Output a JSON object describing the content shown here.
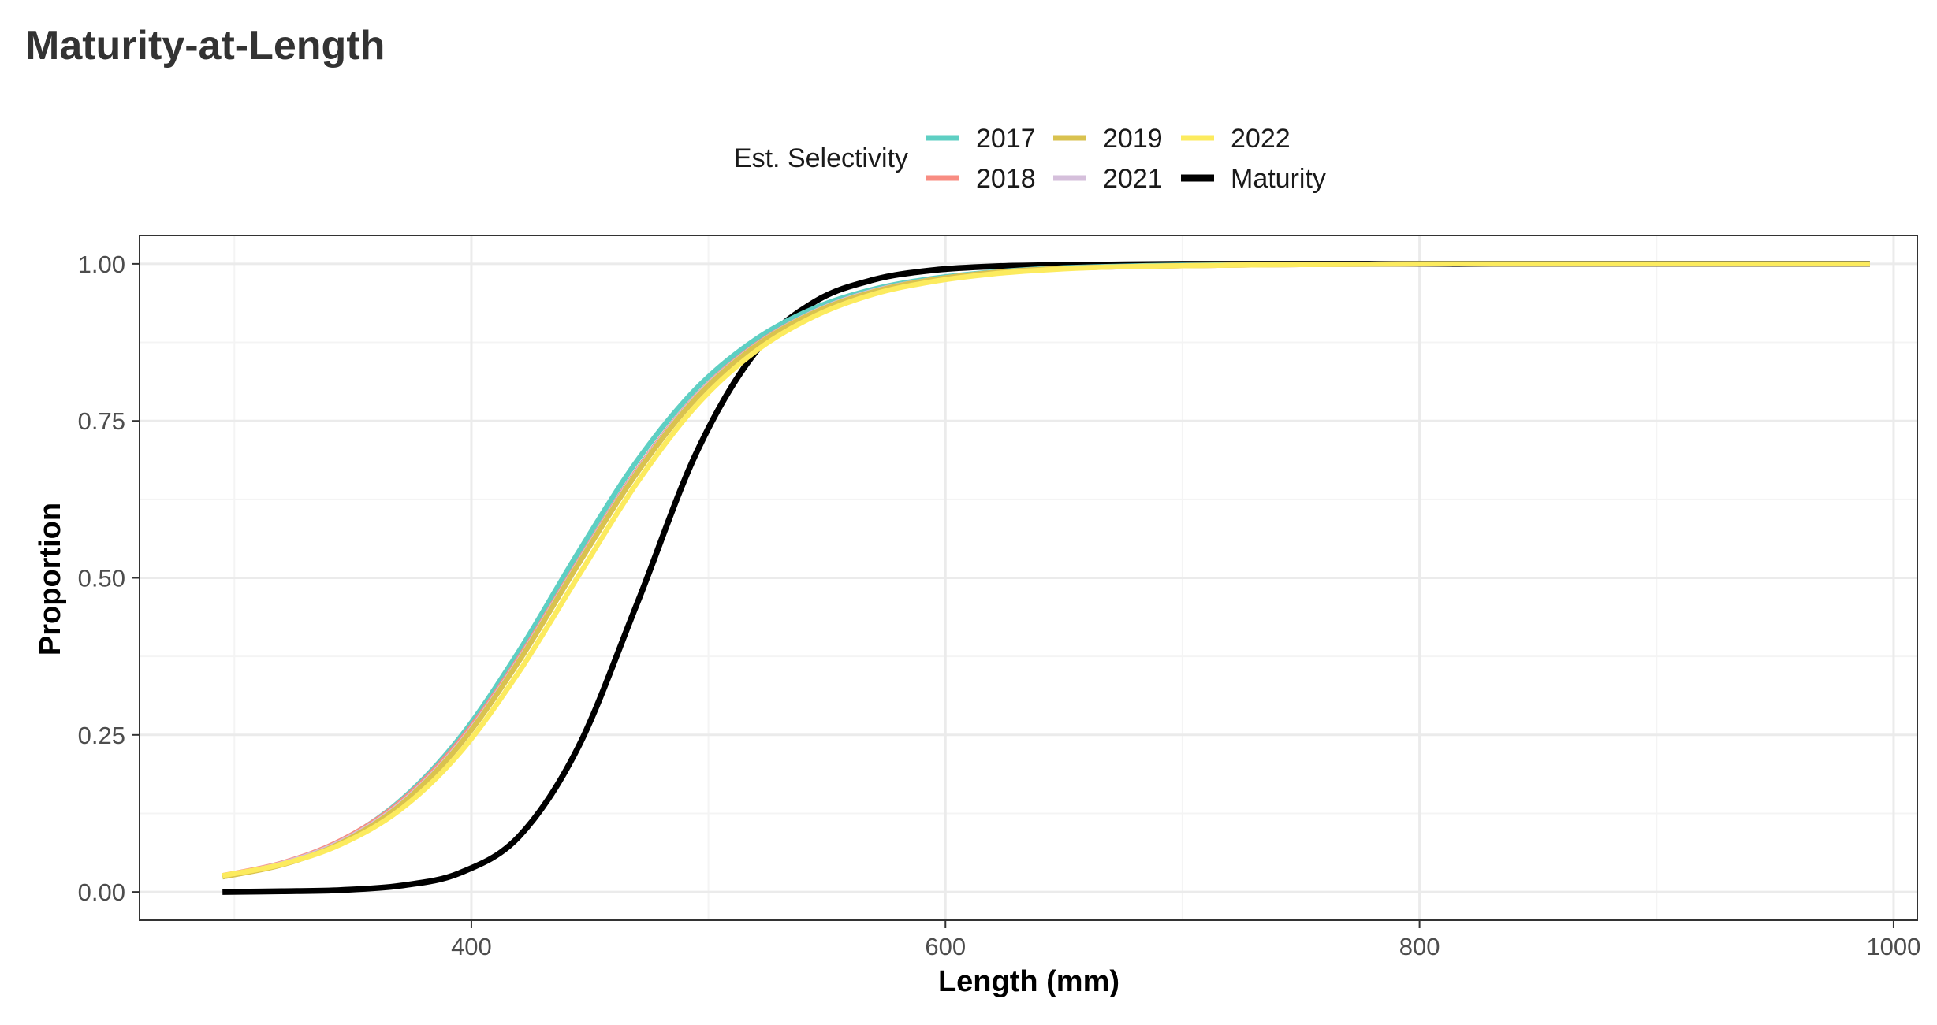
{
  "page": {
    "title": "Maturity-at-Length"
  },
  "colors": {
    "2017": "#5ECFC3",
    "2018": "#F88C82",
    "2019": "#D9C24F",
    "2021": "#D5BFDB",
    "2022": "#FCEB5E",
    "Maturity": "#000000",
    "grid_major": "#EBEBEB",
    "grid_minor": "#F4F4F4",
    "panel_border": "#333333"
  },
  "chart_data": {
    "type": "line",
    "title": "Maturity-at-Length",
    "xlabel": "Length (mm)",
    "ylabel": "Proportion",
    "xlim": [
      260,
      1010
    ],
    "ylim": [
      -0.045,
      1.045
    ],
    "x_ticks": [
      400,
      600,
      800,
      1000
    ],
    "x_tick_labels": [
      "400",
      "600",
      "800",
      "1000"
    ],
    "y_ticks": [
      0,
      0.25,
      0.5,
      0.75,
      1
    ],
    "y_tick_labels": [
      "0.00",
      "0.25",
      "0.50",
      "0.75",
      "1.00"
    ],
    "x_minor": [
      300,
      500,
      700,
      900
    ],
    "y_minor": [
      0.125,
      0.375,
      0.625,
      0.875
    ],
    "grid": true,
    "legend": {
      "title": "Est. Selectivity",
      "position": "top",
      "entries": [
        "2017",
        "2018",
        "2019",
        "2021",
        "2022",
        "Maturity"
      ]
    },
    "x": [
      295,
      320,
      345,
      370,
      395,
      420,
      445,
      470,
      495,
      520,
      545,
      570,
      595,
      620,
      645,
      670,
      700,
      750,
      800,
      850,
      900,
      950,
      990
    ],
    "series": [
      {
        "name": "2017",
        "values": [
          0.024,
          0.044,
          0.081,
          0.145,
          0.245,
          0.383,
          0.54,
          0.687,
          0.802,
          0.88,
          0.93,
          0.96,
          0.977,
          0.987,
          0.993,
          0.996,
          0.998,
          0.999,
          1.0,
          1.0,
          1.0,
          1.0,
          1.0
        ]
      },
      {
        "name": "2018",
        "values": [
          0.026,
          0.046,
          0.082,
          0.143,
          0.24,
          0.372,
          0.525,
          0.672,
          0.79,
          0.871,
          0.924,
          0.957,
          0.975,
          0.986,
          0.992,
          0.995,
          0.997,
          0.999,
          1.0,
          1.0,
          1.0,
          1.0,
          1.0
        ]
      },
      {
        "name": "2019",
        "values": [
          0.024,
          0.043,
          0.078,
          0.138,
          0.234,
          0.367,
          0.521,
          0.668,
          0.787,
          0.869,
          0.923,
          0.956,
          0.975,
          0.986,
          0.992,
          0.995,
          0.997,
          0.999,
          1.0,
          1.0,
          1.0,
          1.0,
          1.0
        ]
      },
      {
        "name": "2021",
        "values": [
          0.025,
          0.045,
          0.08,
          0.14,
          0.236,
          0.369,
          0.523,
          0.67,
          0.789,
          0.87,
          0.924,
          0.957,
          0.975,
          0.986,
          0.992,
          0.995,
          0.997,
          0.999,
          1.0,
          1.0,
          1.0,
          1.0,
          1.0
        ]
      },
      {
        "name": "2022",
        "values": [
          0.026,
          0.044,
          0.076,
          0.131,
          0.221,
          0.35,
          0.502,
          0.652,
          0.775,
          0.861,
          0.917,
          0.952,
          0.972,
          0.984,
          0.991,
          0.995,
          0.997,
          0.999,
          1.0,
          1.0,
          1.0,
          1.0,
          1.0
        ]
      },
      {
        "name": "Maturity",
        "values": [
          0.0,
          0.001,
          0.003,
          0.01,
          0.03,
          0.088,
          0.23,
          0.46,
          0.7,
          0.86,
          0.94,
          0.975,
          0.99,
          0.996,
          0.998,
          0.999,
          1.0,
          1.0,
          1.0,
          1.0,
          1.0,
          1.0,
          1.0
        ]
      }
    ]
  }
}
